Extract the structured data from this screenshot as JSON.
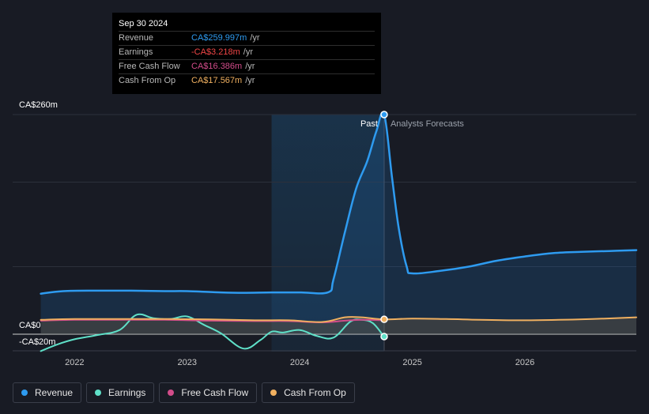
{
  "tooltip": {
    "date": "Sep 30 2024",
    "rows": [
      {
        "label": "Revenue",
        "value": "CA$259.997m",
        "unit": "/yr",
        "color": "#2e9bf0"
      },
      {
        "label": "Earnings",
        "value": "-CA$3.218m",
        "unit": "/yr",
        "color": "#f04646"
      },
      {
        "label": "Free Cash Flow",
        "value": "CA$16.386m",
        "unit": "/yr",
        "color": "#d24c8a"
      },
      {
        "label": "Cash From Op",
        "value": "CA$17.567m",
        "unit": "/yr",
        "color": "#f0b060"
      }
    ]
  },
  "chart_data": {
    "type": "line",
    "title": "",
    "xlabel": "",
    "ylabel": "",
    "y_tick_labels": [
      "CA$260m",
      "CA$0",
      "-CA$20m"
    ],
    "y_ticks": [
      260,
      0,
      -20
    ],
    "ylim": [
      -20,
      260
    ],
    "x_tick_labels": [
      "2022",
      "2023",
      "2024",
      "2025",
      "2026"
    ],
    "x_ticks": [
      2022,
      2023,
      2024,
      2025,
      2026
    ],
    "xlim": [
      2021.45,
      2026.99
    ],
    "past_label": "Past",
    "forecast_label": "Analysts Forecasts",
    "highlight_start": 2023.75,
    "divider_x": 2024.75,
    "series": [
      {
        "name": "Revenue",
        "color": "#2e9bf0",
        "fill": true,
        "x": [
          2021.7,
          2021.9,
          2022.2,
          2022.5,
          2022.8,
          2023.0,
          2023.3,
          2023.5,
          2023.75,
          2024.0,
          2024.25,
          2024.3,
          2024.4,
          2024.5,
          2024.6,
          2024.68,
          2024.75,
          2024.82,
          2024.88,
          2024.95,
          2025.0,
          2025.25,
          2025.5,
          2025.75,
          2026.0,
          2026.25,
          2026.5,
          2026.75,
          2026.99
        ],
        "y": [
          48,
          51,
          51.5,
          51.5,
          51,
          51,
          49.5,
          49,
          49.5,
          49.5,
          49.5,
          65,
          120,
          172,
          205,
          240,
          260,
          185,
          125,
          80,
          72,
          75,
          80,
          87,
          92,
          96,
          97.5,
          98.5,
          99.5
        ]
      },
      {
        "name": "Earnings",
        "color": "#5fe0c8",
        "fill": false,
        "x": [
          2021.7,
          2021.85,
          2022.0,
          2022.2,
          2022.4,
          2022.55,
          2022.7,
          2022.85,
          2023.0,
          2023.15,
          2023.3,
          2023.5,
          2023.65,
          2023.75,
          2023.85,
          2024.0,
          2024.15,
          2024.3,
          2024.45,
          2024.55,
          2024.65,
          2024.75
        ],
        "y": [
          -20,
          -12,
          -6,
          -1,
          5,
          23,
          19,
          18,
          21,
          11,
          1,
          -17,
          -7,
          3,
          2,
          5,
          -2,
          -4,
          15,
          17,
          13,
          -3.2
        ]
      },
      {
        "name": "Free Cash Flow",
        "color": "#d24c8a",
        "fill": false,
        "x": [
          2021.7,
          2022.0,
          2022.4,
          2022.8,
          2023.2,
          2023.6,
          2023.9,
          2024.2,
          2024.4,
          2024.55,
          2024.75
        ],
        "y": [
          16,
          17,
          17,
          17,
          16,
          15.5,
          15.5,
          14,
          16,
          17,
          16.4
        ]
      },
      {
        "name": "Cash From Op",
        "color": "#f0b060",
        "fill": true,
        "x": [
          2021.7,
          2022.0,
          2022.4,
          2022.8,
          2023.2,
          2023.6,
          2023.9,
          2024.2,
          2024.4,
          2024.55,
          2024.75,
          2025.0,
          2025.3,
          2025.6,
          2026.0,
          2026.3,
          2026.6,
          2026.99
        ],
        "y": [
          17,
          18,
          18,
          18,
          17.5,
          16.5,
          16.5,
          14.5,
          20,
          20,
          17.6,
          18.5,
          18,
          17,
          16.5,
          17,
          18,
          20
        ]
      }
    ]
  },
  "legend": [
    {
      "label": "Revenue",
      "color": "#2e9bf0"
    },
    {
      "label": "Earnings",
      "color": "#5fe0c8"
    },
    {
      "label": "Free Cash Flow",
      "color": "#d24c8a"
    },
    {
      "label": "Cash From Op",
      "color": "#f0b060"
    }
  ]
}
